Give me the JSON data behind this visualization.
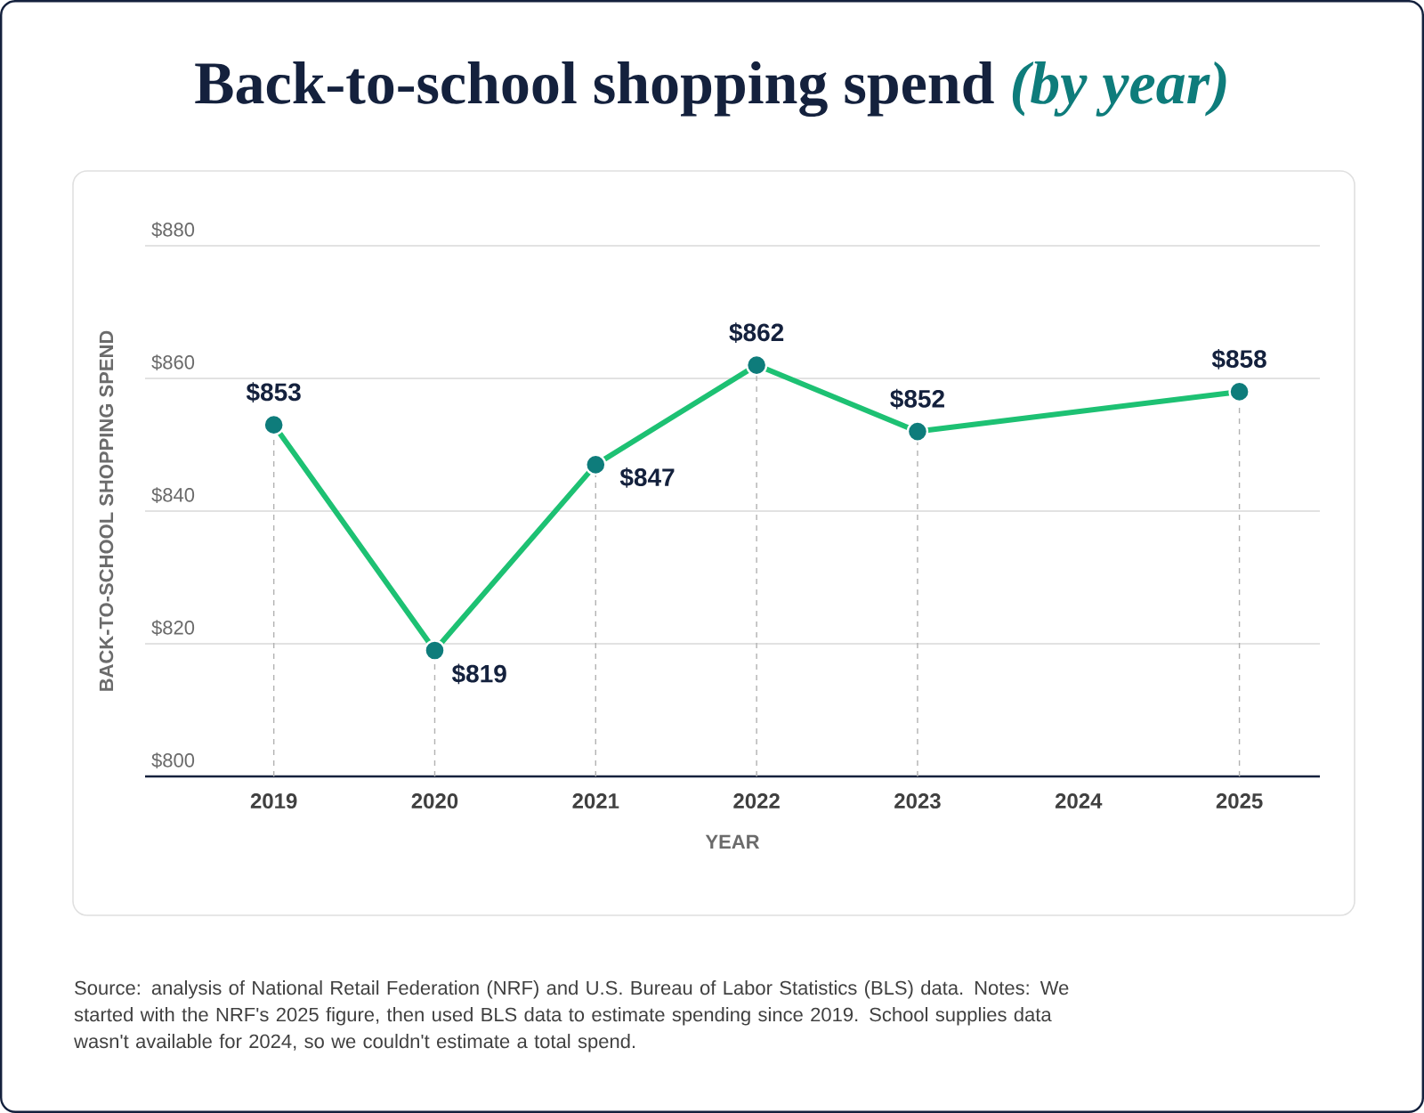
{
  "chart_data": {
    "type": "line",
    "title": "Back-to-school shopping spend",
    "subtitle": "(by year)",
    "xlabel": "YEAR",
    "ylabel": "BACK-TO-SCHOOL SHOPPING SPEND",
    "categories": [
      "2019",
      "2020",
      "2021",
      "2022",
      "2023",
      "2024",
      "2025"
    ],
    "values": [
      853,
      819,
      847,
      862,
      852,
      null,
      858
    ],
    "value_labels": [
      "$853",
      "$819",
      "$847",
      "$862",
      "$852",
      null,
      "$858"
    ],
    "color": "#1DC173",
    "colors": [
      "#0E7C7B",
      "#0E7C7B",
      "#0E7C7B",
      "#0E7C7B",
      "#0E7C7B",
      "#0E7C7B",
      "#0E7C7B"
    ],
    "ylim": [
      800,
      880
    ],
    "yticks": [
      {
        "value": 800,
        "label": "$800"
      },
      {
        "value": 820,
        "label": "$820"
      },
      {
        "value": 840,
        "label": "$840"
      },
      {
        "value": 860,
        "label": "$860"
      },
      {
        "value": 880,
        "label": "$880"
      }
    ],
    "grid": true,
    "marker": "circle",
    "line_style": "solid",
    "annotations": [
      "Source: analysis of National Retail Federation (NRF) and U.S. Bureau of Labor Statistics (BLS) data. Notes: We started with the NRF's 2025 figure, then used BLS data to estimate spending since 2019. School supplies data wasn't available for 2024, so we couldn't estimate a total spend."
    ]
  }
}
